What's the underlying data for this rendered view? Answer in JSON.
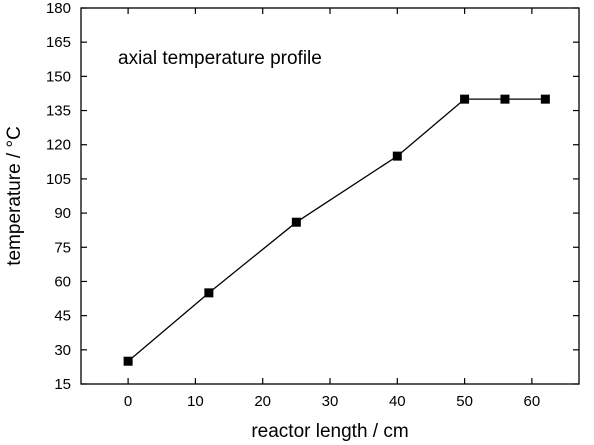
{
  "chart_data": {
    "type": "line",
    "title": "",
    "xlabel": "reactor length / cm",
    "ylabel": "temperature / °C",
    "annotation": "axial temperature profile",
    "xlim": [
      -7,
      67
    ],
    "ylim": [
      15,
      180
    ],
    "xticks": [
      0,
      10,
      20,
      30,
      40,
      50,
      60
    ],
    "yticks": [
      15,
      30,
      45,
      60,
      75,
      90,
      105,
      120,
      135,
      150,
      165,
      180
    ],
    "grid": false,
    "legend": "none",
    "marker": "square",
    "color": "#000000",
    "series": [
      {
        "x": [
          0,
          12,
          25,
          40,
          50,
          56,
          62
        ],
        "y": [
          25,
          55,
          86,
          115,
          140,
          140,
          140
        ]
      }
    ]
  }
}
